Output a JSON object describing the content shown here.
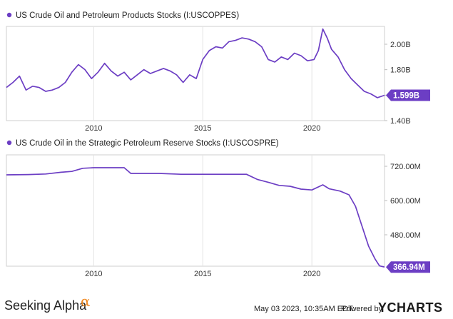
{
  "chart_data": [
    {
      "type": "line",
      "title": "US Crude Oil and Petroleum Products Stocks (I:USCOPPES)",
      "x_ticks": [
        "2010",
        "2015",
        "2020"
      ],
      "y_ticks": [
        "1.40B",
        "1.60B",
        "1.80B",
        "2.00B"
      ],
      "ylim": [
        1.4,
        2.14
      ],
      "xlim": [
        2006.0,
        2023.33
      ],
      "grid": "vertical",
      "last_value_label": "1.599B",
      "line_color": "#6c3ec4",
      "series": [
        {
          "x": [
            2006.0,
            2006.3,
            2006.6,
            2006.9,
            2007.2,
            2007.5,
            2007.8,
            2008.1,
            2008.4,
            2008.7,
            2009.0,
            2009.3,
            2009.6,
            2009.9,
            2010.2,
            2010.5,
            2010.8,
            2011.1,
            2011.4,
            2011.7,
            2012.0,
            2012.3,
            2012.6,
            2012.9,
            2013.2,
            2013.5,
            2013.8,
            2014.1,
            2014.4,
            2014.7,
            2015.0,
            2015.3,
            2015.6,
            2015.9,
            2016.2,
            2016.5,
            2016.8,
            2017.1,
            2017.4,
            2017.7,
            2018.0,
            2018.3,
            2018.6,
            2018.9,
            2019.2,
            2019.5,
            2019.8,
            2020.1,
            2020.3,
            2020.5,
            2020.7,
            2020.9,
            2021.2,
            2021.5,
            2021.8,
            2022.1,
            2022.4,
            2022.7,
            2023.0,
            2023.33
          ],
          "values": [
            1.66,
            1.7,
            1.75,
            1.64,
            1.67,
            1.66,
            1.63,
            1.64,
            1.66,
            1.7,
            1.78,
            1.84,
            1.8,
            1.73,
            1.78,
            1.85,
            1.79,
            1.75,
            1.78,
            1.72,
            1.76,
            1.8,
            1.77,
            1.79,
            1.81,
            1.79,
            1.76,
            1.7,
            1.76,
            1.73,
            1.88,
            1.95,
            1.98,
            1.97,
            2.02,
            2.03,
            2.05,
            2.04,
            2.02,
            1.98,
            1.88,
            1.86,
            1.9,
            1.88,
            1.93,
            1.91,
            1.87,
            1.88,
            1.95,
            2.12,
            2.05,
            1.96,
            1.9,
            1.8,
            1.73,
            1.68,
            1.63,
            1.61,
            1.58,
            1.599
          ]
        }
      ]
    },
    {
      "type": "line",
      "title": "US Crude Oil in the Strategic Petroleum Reserve Stocks (I:USCOSPRE)",
      "x_ticks": [
        "2010",
        "2015",
        "2020"
      ],
      "y_ticks": [
        "480.00M",
        "600.00M",
        "720.00M"
      ],
      "ylim": [
        370,
        760
      ],
      "xlim": [
        2006.0,
        2023.33
      ],
      "grid": "vertical",
      "last_value_label": "366.94M",
      "line_color": "#6c3ec4",
      "series": [
        {
          "x": [
            2006.0,
            2007.0,
            2007.8,
            2008.5,
            2009.0,
            2009.5,
            2010.0,
            2010.7,
            2011.4,
            2011.7,
            2012.0,
            2013.0,
            2014.0,
            2015.0,
            2016.0,
            2017.0,
            2017.5,
            2018.0,
            2018.5,
            2019.0,
            2019.5,
            2020.0,
            2020.5,
            2020.8,
            2021.3,
            2021.7,
            2022.0,
            2022.3,
            2022.6,
            2022.9,
            2023.1,
            2023.33
          ],
          "values": [
            690,
            691,
            693,
            699,
            702,
            713,
            715,
            715,
            715,
            695,
            695,
            695,
            692,
            692,
            692,
            692,
            674,
            664,
            653,
            650,
            640,
            637,
            655,
            641,
            633,
            620,
            580,
            510,
            440,
            395,
            371,
            366.94
          ]
        }
      ]
    }
  ],
  "footer": {
    "date": "May 03 2023, 10:35AM EDT.",
    "powered_by": "Powered by",
    "ycharts": "YCHARTS",
    "brand": "Seeking Alpha",
    "brand_mark": "α"
  }
}
